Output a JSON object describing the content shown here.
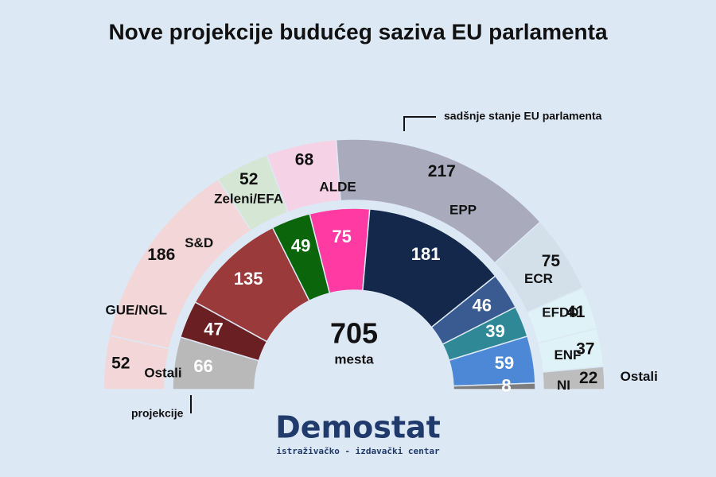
{
  "chart_data": {
    "type": "parliament",
    "title": "Nove projekcije budućeg saziva EU parlamenta",
    "total": 705,
    "total_label": "mesta",
    "series": [
      {
        "name": "sadšnje stanje EU parlamenta",
        "ring": "outer",
        "categories": [
          "GUE/NGL",
          "S&D",
          "Zeleni/EFA",
          "ALDE",
          "EPP",
          "ECR",
          "EFDD",
          "ENF",
          "Ostali"
        ],
        "values": [
          52,
          186,
          52,
          68,
          217,
          75,
          41,
          37,
          22
        ],
        "colors": [
          "#f2d6d8",
          "#f2d6d8",
          "#d5e6d5",
          "#f6d2e6",
          "#a9abbd",
          "#d3dfe9",
          "#dff2f8",
          "#dff2f8",
          "#bdbdbd"
        ]
      },
      {
        "name": "projekcije",
        "ring": "inner",
        "categories": [
          "Ostali",
          "GUE/NGL",
          "S&D",
          "Zeleni/EFA",
          "ALDE",
          "EPP",
          "ECR",
          "EFDD",
          "ENF",
          "NI"
        ],
        "values": [
          66,
          47,
          135,
          49,
          75,
          181,
          46,
          39,
          59,
          8
        ],
        "colors": [
          "#b9b9b9",
          "#6a1f22",
          "#9b3a3a",
          "#0b660b",
          "#ff3aa2",
          "#13284a",
          "#395b91",
          "#2e8896",
          "#4c88d6",
          "#7d7d7d"
        ]
      }
    ],
    "logo": "Demostat",
    "logo_subtitle": "istraživačko - izdavački centar"
  }
}
